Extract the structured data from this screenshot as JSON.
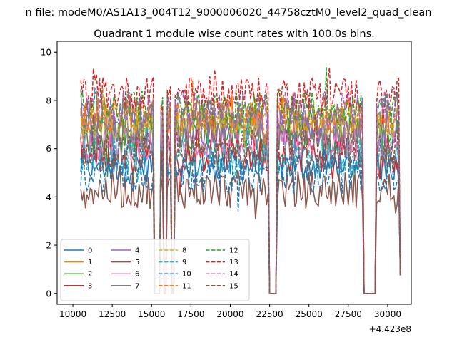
{
  "chart_data": {
    "type": "line",
    "suptitle": "n file: modeM0/AS1A13_004T12_9000006020_44758cztM0_level2_quad_clean",
    "title": "Quadrant 1 module wise count rates with 100.0s bins.",
    "xlabel": "",
    "ylabel": "",
    "x_offset_label": "+4.423e8",
    "xlim": [
      9000,
      31500
    ],
    "ylim": [
      -0.45,
      10.45
    ],
    "x_ticks": [
      10000,
      12500,
      15000,
      17500,
      20000,
      22500,
      25000,
      27500,
      30000
    ],
    "x_tick_labels": [
      "10000",
      "12500",
      "15000",
      "17500",
      "20000",
      "22500",
      "25000",
      "27500",
      "30000"
    ],
    "y_ticks": [
      0,
      2,
      4,
      6,
      8,
      10
    ],
    "y_tick_labels": [
      "0",
      "2",
      "4",
      "6",
      "8",
      "10"
    ],
    "legend_position": "lower-left",
    "x_start": 10500,
    "x_step": 100,
    "x_end": 30800,
    "gaps": [
      {
        "from": 15200,
        "to": 15500,
        "value": 0
      },
      {
        "from": 15800,
        "to": 15900,
        "value": 0
      },
      {
        "from": 16300,
        "to": 16400,
        "value": 0
      },
      {
        "from": 22500,
        "to": 22900,
        "value": 0
      },
      {
        "from": 28500,
        "to": 29200,
        "value": 0
      }
    ],
    "tail_value": 0.75,
    "series": [
      {
        "name": "0",
        "mean": 5.3,
        "amp": 0.35,
        "color": "#1f77b4",
        "dash": false
      },
      {
        "name": "1",
        "mean": 7.4,
        "amp": 0.4,
        "color": "#ff7f0e",
        "dash": false
      },
      {
        "name": "2",
        "mean": 6.6,
        "amp": 0.4,
        "color": "#2ca02c",
        "dash": false
      },
      {
        "name": "3",
        "mean": 5.8,
        "amp": 0.4,
        "color": "#d62728",
        "dash": false
      },
      {
        "name": "4",
        "mean": 6.9,
        "amp": 0.4,
        "color": "#9467bd",
        "dash": false
      },
      {
        "name": "5",
        "mean": 4.3,
        "amp": 0.4,
        "color": "#8c564b",
        "dash": false
      },
      {
        "name": "6",
        "mean": 6.2,
        "amp": 0.35,
        "color": "#e377c2",
        "dash": false
      },
      {
        "name": "7",
        "mean": 6.8,
        "amp": 0.4,
        "color": "#7f7f7f",
        "dash": false
      },
      {
        "name": "8",
        "mean": 7.1,
        "amp": 0.35,
        "color": "#bcbd22",
        "dash": true
      },
      {
        "name": "9",
        "mean": 5.7,
        "amp": 0.4,
        "color": "#17becf",
        "dash": true
      },
      {
        "name": "10",
        "mean": 5.0,
        "amp": 0.4,
        "color": "#1f77b4",
        "dash": true
      },
      {
        "name": "11",
        "mean": 7.3,
        "amp": 0.35,
        "color": "#ff7f0e",
        "dash": true
      },
      {
        "name": "12",
        "mean": 7.7,
        "amp": 0.35,
        "color": "#2ca02c",
        "dash": true
      },
      {
        "name": "13",
        "mean": 8.3,
        "amp": 0.35,
        "color": "#d62728",
        "dash": true
      },
      {
        "name": "14",
        "mean": 7.6,
        "amp": 0.4,
        "color": "#9467bd",
        "dash": true
      },
      {
        "name": "15",
        "mean": 6.0,
        "amp": 0.4,
        "color": "#8c564b",
        "dash": true
      }
    ]
  }
}
